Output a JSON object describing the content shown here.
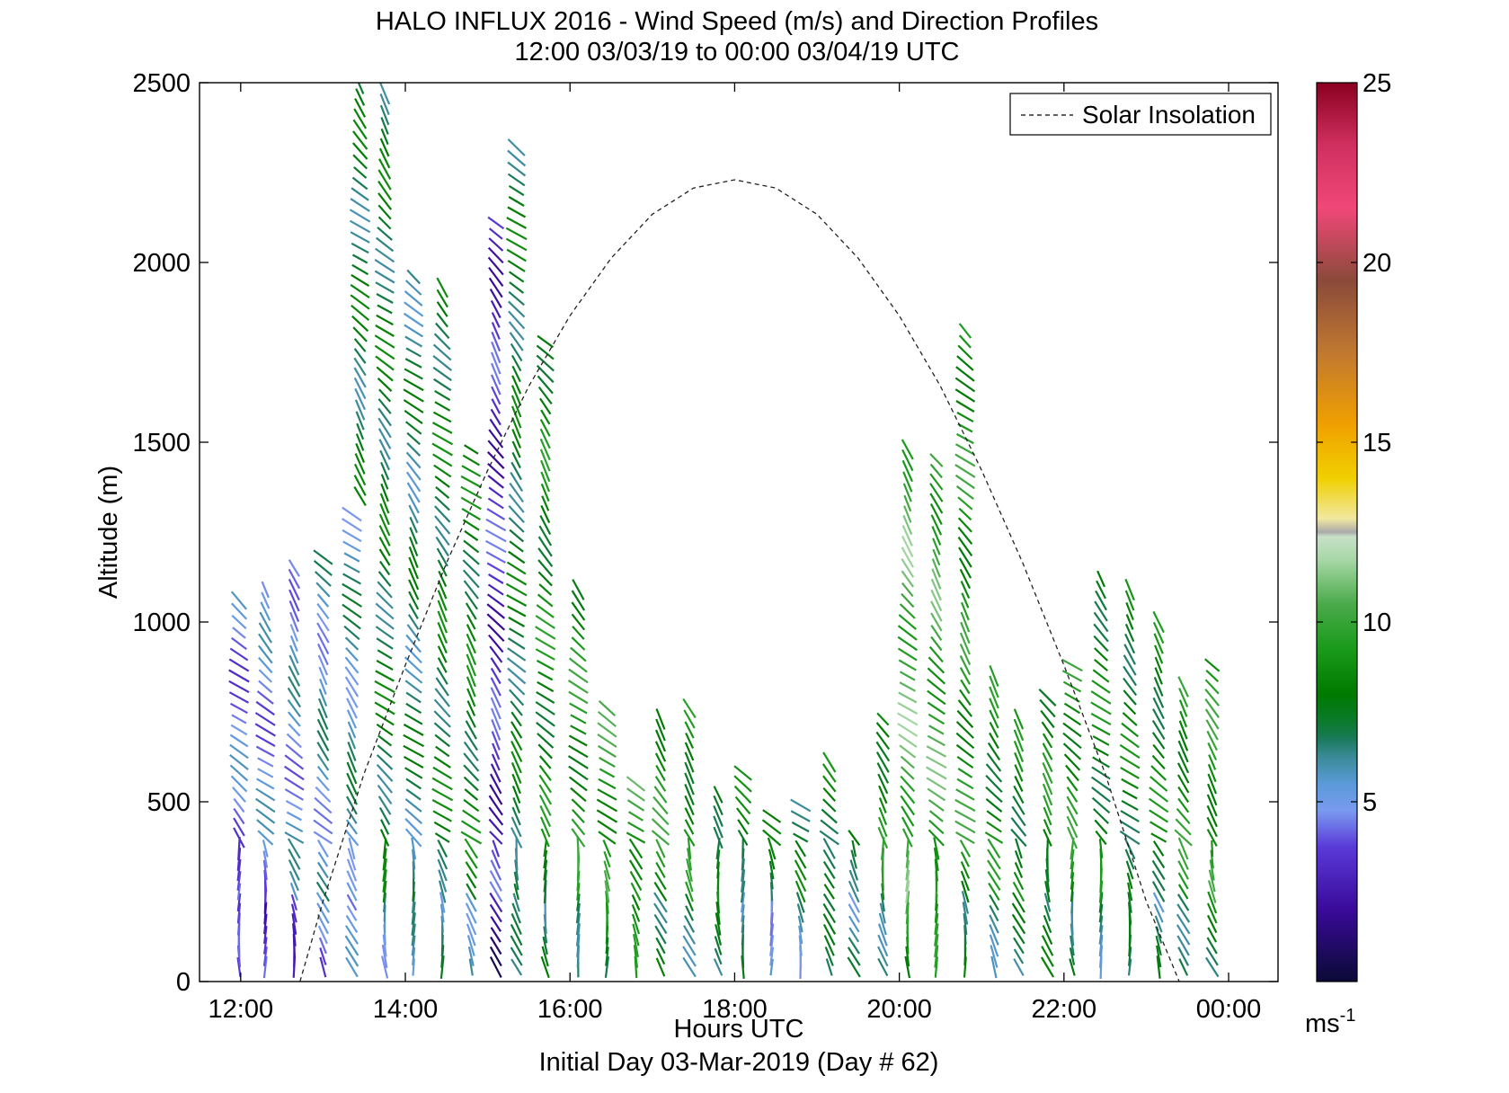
{
  "chart_data": {
    "type": "scatter",
    "title": "HALO INFLUX 2016 - Wind Speed (m/s) and Direction Profiles",
    "subtitle": "12:00 03/03/19 to 00:00 03/04/19  UTC",
    "xlabel": "Hours UTC",
    "xlabel2": "Initial Day 03-Mar-2019 (Day # 62)",
    "ylabel": "Altitude (m)",
    "xlim": [
      11.5,
      24.6
    ],
    "ylim": [
      0,
      2500
    ],
    "x_ticks": [
      12,
      14,
      16,
      18,
      20,
      22,
      24
    ],
    "x_tick_labels": [
      "12:00",
      "14:00",
      "16:00",
      "18:00",
      "20:00",
      "22:00",
      "00:00"
    ],
    "y_ticks": [
      0,
      500,
      1000,
      1500,
      2000,
      2500
    ],
    "y_tick_labels": [
      "0",
      "500",
      "1000",
      "1500",
      "2000",
      "2500"
    ],
    "legend": {
      "entries": [
        "Solar Insolation"
      ],
      "placement": "top-right"
    },
    "colorbar": {
      "label": "ms",
      "label_superscript": "-1",
      "range": [
        0,
        25
      ],
      "ticks": [
        5,
        10,
        15,
        20,
        25
      ],
      "tick_labels": [
        "5",
        "10",
        "15",
        "20",
        "25"
      ],
      "stops": [
        [
          0.0,
          "#0a0a35"
        ],
        [
          0.08,
          "#3a0a9a"
        ],
        [
          0.15,
          "#5a3ad8"
        ],
        [
          0.19,
          "#7a9af0"
        ],
        [
          0.22,
          "#5a9ad8"
        ],
        [
          0.25,
          "#3a8a98"
        ],
        [
          0.27,
          "#1a7a5a"
        ],
        [
          0.29,
          "#0a7a2a"
        ],
        [
          0.32,
          "#007a00"
        ],
        [
          0.37,
          "#1a9a1a"
        ],
        [
          0.42,
          "#4aaa4a"
        ],
        [
          0.47,
          "#a8d8a8"
        ],
        [
          0.495,
          "#c8e0c8"
        ],
        [
          0.5,
          "#aaaaaa"
        ],
        [
          0.515,
          "#f0e8a0"
        ],
        [
          0.56,
          "#f0d000"
        ],
        [
          0.62,
          "#f0a000"
        ],
        [
          0.7,
          "#c07830"
        ],
        [
          0.78,
          "#8a4a3a"
        ],
        [
          0.86,
          "#f04878"
        ],
        [
          0.93,
          "#d03060"
        ],
        [
          1.0,
          "#8a0020"
        ]
      ]
    },
    "solar_insolation": {
      "style": "dashed",
      "x": [
        12.72,
        13.0,
        13.5,
        14.0,
        14.5,
        15.0,
        15.5,
        16.0,
        16.5,
        17.0,
        17.5,
        18.0,
        18.5,
        19.0,
        19.5,
        20.0,
        20.5,
        21.0,
        21.5,
        22.0,
        22.5,
        23.0,
        23.4
      ],
      "y": [
        0,
        223,
        579,
        880,
        1164,
        1422,
        1656,
        1852,
        2012,
        2134,
        2207,
        2230,
        2207,
        2134,
        2012,
        1852,
        1656,
        1422,
        1164,
        880,
        579,
        223,
        0
      ]
    },
    "wind_profiles": [
      {
        "t": 11.98,
        "alt": [
          40,
          1060
        ],
        "speed": 4.5
      },
      {
        "t": 12.3,
        "alt": [
          40,
          1090
        ],
        "speed": 4.8
      },
      {
        "t": 12.65,
        "alt": [
          40,
          1160
        ],
        "speed": 5.2
      },
      {
        "t": 13.0,
        "alt": [
          40,
          1190
        ],
        "speed": 5.6
      },
      {
        "t": 13.35,
        "alt": [
          40,
          1300
        ],
        "speed": 6.0
      },
      {
        "t": 13.45,
        "alt": [
          1350,
          2490
        ],
        "speed": 7.2
      },
      {
        "t": 13.75,
        "alt": [
          40,
          2490
        ],
        "speed": 7.4
      },
      {
        "t": 14.1,
        "alt": [
          40,
          1980
        ],
        "speed": 6.8
      },
      {
        "t": 14.45,
        "alt": [
          40,
          1950
        ],
        "speed": 7.6
      },
      {
        "t": 14.8,
        "alt": [
          40,
          1480
        ],
        "speed": 7.9
      },
      {
        "t": 15.1,
        "alt": [
          40,
          2130
        ],
        "speed": 3.2
      },
      {
        "t": 15.35,
        "alt": [
          40,
          2330
        ],
        "speed": 7.4
      },
      {
        "t": 15.7,
        "alt": [
          40,
          1800
        ],
        "speed": 8.4
      },
      {
        "t": 16.1,
        "alt": [
          40,
          1100
        ],
        "speed": 8.9
      },
      {
        "t": 16.45,
        "alt": [
          40,
          780
        ],
        "speed": 9.4
      },
      {
        "t": 16.8,
        "alt": [
          40,
          560
        ],
        "speed": 9.7
      },
      {
        "t": 17.1,
        "alt": [
          40,
          740
        ],
        "speed": 9.1
      },
      {
        "t": 17.45,
        "alt": [
          40,
          760
        ],
        "speed": 8.6
      },
      {
        "t": 17.8,
        "alt": [
          40,
          540
        ],
        "speed": 8.1
      },
      {
        "t": 18.1,
        "alt": [
          40,
          580
        ],
        "speed": 7.7
      },
      {
        "t": 18.45,
        "alt": [
          40,
          480
        ],
        "speed": 7.1
      },
      {
        "t": 18.8,
        "alt": [
          40,
          500
        ],
        "speed": 7.4
      },
      {
        "t": 19.15,
        "alt": [
          40,
          630
        ],
        "speed": 7.9
      },
      {
        "t": 19.45,
        "alt": [
          40,
          420
        ],
        "speed": 7.6
      },
      {
        "t": 19.8,
        "alt": [
          40,
          750
        ],
        "speed": 8.6
      },
      {
        "t": 20.1,
        "alt": [
          40,
          1500
        ],
        "speed": 10.4
      },
      {
        "t": 20.45,
        "alt": [
          40,
          1450
        ],
        "speed": 10.0
      },
      {
        "t": 20.8,
        "alt": [
          40,
          1830
        ],
        "speed": 9.1
      },
      {
        "t": 21.15,
        "alt": [
          40,
          850
        ],
        "speed": 8.4
      },
      {
        "t": 21.45,
        "alt": [
          40,
          740
        ],
        "speed": 8.1
      },
      {
        "t": 21.8,
        "alt": [
          40,
          800
        ],
        "speed": 8.6
      },
      {
        "t": 22.1,
        "alt": [
          40,
          900
        ],
        "speed": 8.9
      },
      {
        "t": 22.45,
        "alt": [
          40,
          1130
        ],
        "speed": 8.1
      },
      {
        "t": 22.8,
        "alt": [
          40,
          1100
        ],
        "speed": 7.9
      },
      {
        "t": 23.15,
        "alt": [
          40,
          1000
        ],
        "speed": 8.1
      },
      {
        "t": 23.45,
        "alt": [
          40,
          820
        ],
        "speed": 8.9
      },
      {
        "t": 23.8,
        "alt": [
          40,
          900
        ],
        "speed": 9.1
      }
    ]
  }
}
